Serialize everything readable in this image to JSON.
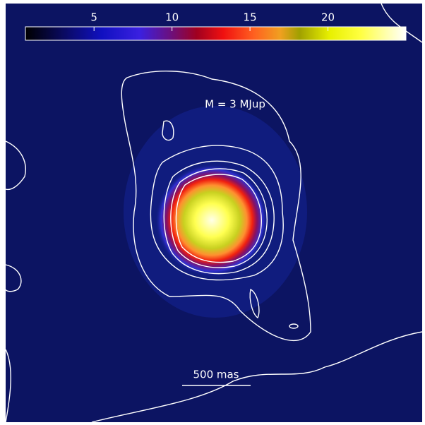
{
  "colorbar": {
    "range": [
      0.6,
      25
    ],
    "ticks": [
      5,
      10,
      15,
      20
    ]
  },
  "annotation": "M = 3 MJup",
  "scale_bar": "500 mas"
}
